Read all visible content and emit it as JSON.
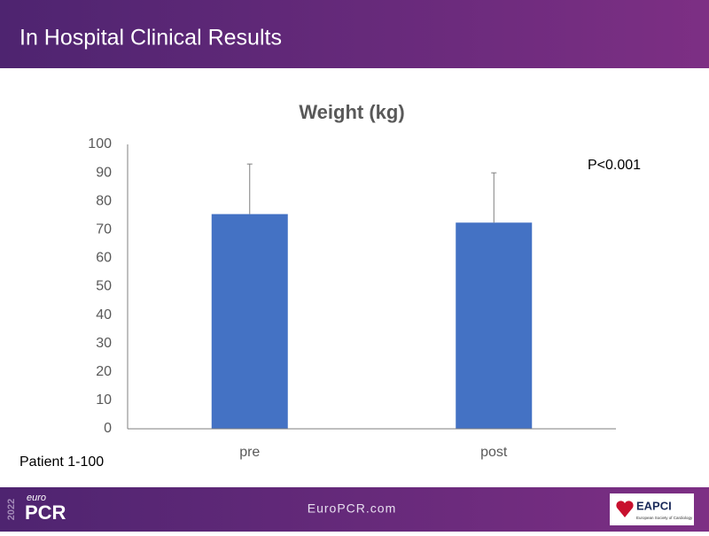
{
  "header": {
    "title": "In Hospital Clinical Results"
  },
  "chart_data": {
    "type": "bar",
    "title": "Weight (kg)",
    "categories": [
      "pre",
      "post"
    ],
    "values": [
      75.5,
      72.5
    ],
    "errors": [
      17.6,
      17.5
    ],
    "color": "#4472c4",
    "ylim": [
      0,
      100
    ],
    "yticks": [
      0,
      10,
      20,
      30,
      40,
      50,
      60,
      70,
      80,
      90,
      100
    ],
    "grid": false,
    "annotation": "P<0.001"
  },
  "note": "Patient 1-100",
  "footer": {
    "year": "2022",
    "brand_small": "euro",
    "brand": "PCR",
    "url": "EuroPCR.com",
    "partner": "EAPCI",
    "partner_sub": "European Society of Cardiology"
  }
}
